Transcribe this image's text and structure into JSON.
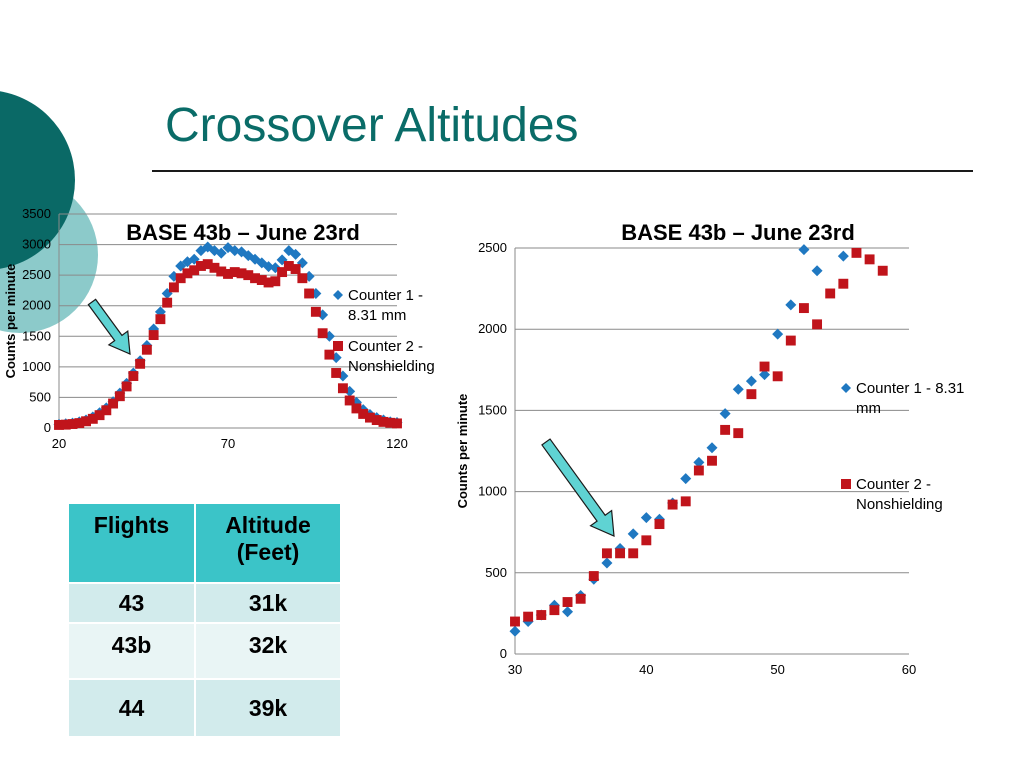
{
  "slide": {
    "title": "Crossover Altitudes",
    "colors": {
      "title": "#0a6c68",
      "circle_dark": "#0a6966",
      "circle_light": "#8ccaca"
    }
  },
  "chart_data": [
    {
      "type": "scatter",
      "title": "BASE 43b – June 23rd",
      "xlabel": "",
      "ylabel": "Counts per minute",
      "xlim": [
        20,
        120
      ],
      "ylim": [
        0,
        3500
      ],
      "x_ticks": [
        "20",
        "70",
        "120"
      ],
      "y_ticks": [
        "0",
        "500",
        "1000",
        "1500",
        "2000",
        "2500",
        "3000",
        "3500"
      ],
      "grid": "horizontal",
      "legend": "right",
      "series": [
        {
          "name": "Counter 1 - 8.31 mm",
          "marker": "diamond",
          "color": "#1f78c1",
          "points": [
            [
              20,
              60
            ],
            [
              22,
              70
            ],
            [
              24,
              80
            ],
            [
              26,
              100
            ],
            [
              28,
              130
            ],
            [
              30,
              180
            ],
            [
              32,
              250
            ],
            [
              34,
              330
            ],
            [
              36,
              430
            ],
            [
              38,
              570
            ],
            [
              40,
              730
            ],
            [
              42,
              900
            ],
            [
              44,
              1100
            ],
            [
              46,
              1350
            ],
            [
              48,
              1620
            ],
            [
              50,
              1900
            ],
            [
              52,
              2200
            ],
            [
              54,
              2480
            ],
            [
              56,
              2650
            ],
            [
              58,
              2720
            ],
            [
              60,
              2760
            ],
            [
              62,
              2900
            ],
            [
              64,
              2960
            ],
            [
              66,
              2900
            ],
            [
              68,
              2860
            ],
            [
              70,
              2950
            ],
            [
              72,
              2900
            ],
            [
              74,
              2880
            ],
            [
              76,
              2820
            ],
            [
              78,
              2760
            ],
            [
              80,
              2700
            ],
            [
              82,
              2640
            ],
            [
              84,
              2620
            ],
            [
              86,
              2750
            ],
            [
              88,
              2900
            ],
            [
              90,
              2840
            ],
            [
              92,
              2700
            ],
            [
              94,
              2480
            ],
            [
              96,
              2200
            ],
            [
              98,
              1850
            ],
            [
              100,
              1500
            ],
            [
              102,
              1150
            ],
            [
              104,
              850
            ],
            [
              106,
              600
            ],
            [
              108,
              420
            ],
            [
              110,
              300
            ],
            [
              112,
              220
            ],
            [
              114,
              170
            ],
            [
              116,
              130
            ],
            [
              118,
              100
            ],
            [
              120,
              90
            ]
          ]
        },
        {
          "name": "Counter 2 - Nonshielding",
          "marker": "square",
          "color": "#c0141b",
          "points": [
            [
              20,
              50
            ],
            [
              22,
              55
            ],
            [
              24,
              65
            ],
            [
              26,
              80
            ],
            [
              28,
              110
            ],
            [
              30,
              150
            ],
            [
              32,
              210
            ],
            [
              34,
              290
            ],
            [
              36,
              400
            ],
            [
              38,
              520
            ],
            [
              40,
              680
            ],
            [
              42,
              850
            ],
            [
              44,
              1050
            ],
            [
              46,
              1280
            ],
            [
              48,
              1520
            ],
            [
              50,
              1780
            ],
            [
              52,
              2050
            ],
            [
              54,
              2300
            ],
            [
              56,
              2450
            ],
            [
              58,
              2530
            ],
            [
              60,
              2580
            ],
            [
              62,
              2650
            ],
            [
              64,
              2680
            ],
            [
              66,
              2620
            ],
            [
              68,
              2560
            ],
            [
              70,
              2520
            ],
            [
              72,
              2550
            ],
            [
              74,
              2530
            ],
            [
              76,
              2500
            ],
            [
              78,
              2450
            ],
            [
              80,
              2420
            ],
            [
              82,
              2380
            ],
            [
              84,
              2400
            ],
            [
              86,
              2550
            ],
            [
              88,
              2650
            ],
            [
              90,
              2600
            ],
            [
              92,
              2450
            ],
            [
              94,
              2200
            ],
            [
              96,
              1900
            ],
            [
              98,
              1550
            ],
            [
              100,
              1200
            ],
            [
              102,
              900
            ],
            [
              104,
              650
            ],
            [
              106,
              450
            ],
            [
              108,
              320
            ],
            [
              110,
              230
            ],
            [
              112,
              170
            ],
            [
              114,
              130
            ],
            [
              116,
              100
            ],
            [
              118,
              85
            ],
            [
              120,
              75
            ]
          ]
        }
      ]
    },
    {
      "type": "scatter",
      "title": "BASE 43b – June 23rd",
      "xlabel": "",
      "ylabel": "Counts per minute",
      "xlim": [
        30,
        60
      ],
      "ylim": [
        0,
        2500
      ],
      "x_ticks": [
        "30",
        "40",
        "50",
        "60"
      ],
      "y_ticks": [
        "0",
        "500",
        "1000",
        "1500",
        "2000",
        "2500"
      ],
      "grid": "horizontal",
      "legend": "right",
      "series": [
        {
          "name": "Counter 1 - 8.31 mm",
          "marker": "diamond",
          "color": "#1f78c1",
          "points": [
            [
              30,
              140
            ],
            [
              31,
              200
            ],
            [
              32,
              240
            ],
            [
              33,
              300
            ],
            [
              34,
              260
            ],
            [
              35,
              360
            ],
            [
              36,
              460
            ],
            [
              37,
              560
            ],
            [
              38,
              650
            ],
            [
              39,
              740
            ],
            [
              40,
              840
            ],
            [
              41,
              830
            ],
            [
              42,
              930
            ],
            [
              43,
              1080
            ],
            [
              44,
              1180
            ],
            [
              45,
              1270
            ],
            [
              46,
              1480
            ],
            [
              47,
              1630
            ],
            [
              48,
              1680
            ],
            [
              49,
              1720
            ],
            [
              50,
              1970
            ],
            [
              51,
              2150
            ],
            [
              52,
              2490
            ],
            [
              53,
              2360
            ],
            [
              55,
              2450
            ]
          ]
        },
        {
          "name": "Counter 2 - Nonshielding",
          "marker": "square",
          "color": "#c0141b",
          "points": [
            [
              30,
              200
            ],
            [
              31,
              230
            ],
            [
              32,
              240
            ],
            [
              33,
              270
            ],
            [
              34,
              320
            ],
            [
              35,
              340
            ],
            [
              36,
              480
            ],
            [
              37,
              620
            ],
            [
              38,
              620
            ],
            [
              39,
              620
            ],
            [
              40,
              700
            ],
            [
              41,
              800
            ],
            [
              42,
              920
            ],
            [
              43,
              940
            ],
            [
              44,
              1130
            ],
            [
              45,
              1190
            ],
            [
              46,
              1380
            ],
            [
              47,
              1360
            ],
            [
              48,
              1600
            ],
            [
              49,
              1770
            ],
            [
              50,
              1710
            ],
            [
              51,
              1930
            ],
            [
              52,
              2130
            ],
            [
              53,
              2030
            ],
            [
              54,
              2220
            ],
            [
              55,
              2280
            ],
            [
              56,
              2470
            ],
            [
              57,
              2430
            ],
            [
              58,
              2360
            ]
          ]
        }
      ]
    }
  ],
  "table": {
    "headers": [
      "Flights",
      "Altitude (Feet)"
    ],
    "rows": [
      [
        "43",
        "31k"
      ],
      [
        "43b",
        "32k"
      ],
      [
        "44",
        "39k"
      ]
    ],
    "colors": {
      "header": "#3bc4c8",
      "row_a": "#d2ebec",
      "row_b": "#e9f5f5"
    }
  },
  "annotations": {
    "arrow_color": "#5fd3d3"
  }
}
